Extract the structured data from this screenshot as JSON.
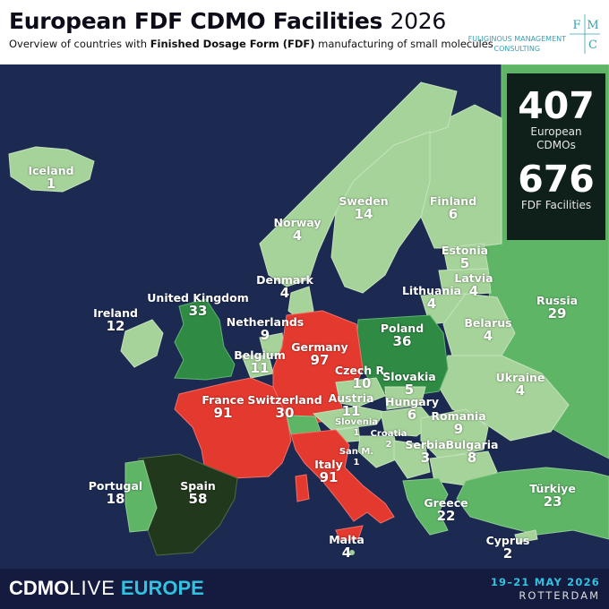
{
  "header": {
    "title": "European FDF CDMO Facilities",
    "year": "2026",
    "subtitle_pre": "Overview of countries with ",
    "subtitle_bold": "Finished Dosage Form (FDF)",
    "subtitle_post": " manufacturing of small molecules",
    "logo_line1": "FULIGINOUS MANAGEMENT",
    "logo_line2": "CONSULTING",
    "logo_letters": [
      "F",
      "M",
      "C"
    ]
  },
  "stats": {
    "cdmo_count": "407",
    "cdmo_caption_1": "European",
    "cdmo_caption_2": "CDMOs",
    "facility_count": "676",
    "facility_caption": "FDF Facilities"
  },
  "countries": [
    {
      "name": "Iceland",
      "value": "1"
    },
    {
      "name": "Norway",
      "value": "4"
    },
    {
      "name": "Sweden",
      "value": "14"
    },
    {
      "name": "Finland",
      "value": "6"
    },
    {
      "name": "Estonia",
      "value": "5"
    },
    {
      "name": "Latvia",
      "value": "4"
    },
    {
      "name": "Lithuania",
      "value": "4"
    },
    {
      "name": "Denmark",
      "value": "4"
    },
    {
      "name": "Russia",
      "value": "29"
    },
    {
      "name": "Ireland",
      "value": "12"
    },
    {
      "name": "United Kingdom",
      "value": "33"
    },
    {
      "name": "Netherlands",
      "value": "9"
    },
    {
      "name": "Belgium",
      "value": "11"
    },
    {
      "name": "Germany",
      "value": "97"
    },
    {
      "name": "Poland",
      "value": "36"
    },
    {
      "name": "Belarus",
      "value": "4"
    },
    {
      "name": "Czech R.",
      "value": "10"
    },
    {
      "name": "Slovakia",
      "value": "5"
    },
    {
      "name": "Ukraine",
      "value": "4"
    },
    {
      "name": "France",
      "value": "91"
    },
    {
      "name": "Switzerland",
      "value": "30"
    },
    {
      "name": "Austria",
      "value": "11"
    },
    {
      "name": "Hungary",
      "value": "6"
    },
    {
      "name": "Slovenia",
      "value": "1"
    },
    {
      "name": "Croatia",
      "value": "2"
    },
    {
      "name": "Romania",
      "value": "9"
    },
    {
      "name": "San M.",
      "value": "1"
    },
    {
      "name": "Serbia",
      "value": "3"
    },
    {
      "name": "Bulgaria",
      "value": "8"
    },
    {
      "name": "Italy",
      "value": "91"
    },
    {
      "name": "Portugal",
      "value": "18"
    },
    {
      "name": "Spain",
      "value": "58"
    },
    {
      "name": "Greece",
      "value": "22"
    },
    {
      "name": "Türkiye",
      "value": "23"
    },
    {
      "name": "Malta",
      "value": "4"
    },
    {
      "name": "Cyprus",
      "value": "2"
    }
  ],
  "colors": {
    "sea": "#1c2a52",
    "light_green": "#a6d39a",
    "mid_green": "#5eb566",
    "dark_green": "#2f8a44",
    "red": "#e4392f",
    "spain": "#22381c"
  },
  "footer": {
    "brand_part1": "CDMO",
    "brand_part2": "LIVE",
    "brand_part3": "EUROPE",
    "event_date": "19–21 MAY 2026",
    "event_city": "ROTTERDAM"
  }
}
